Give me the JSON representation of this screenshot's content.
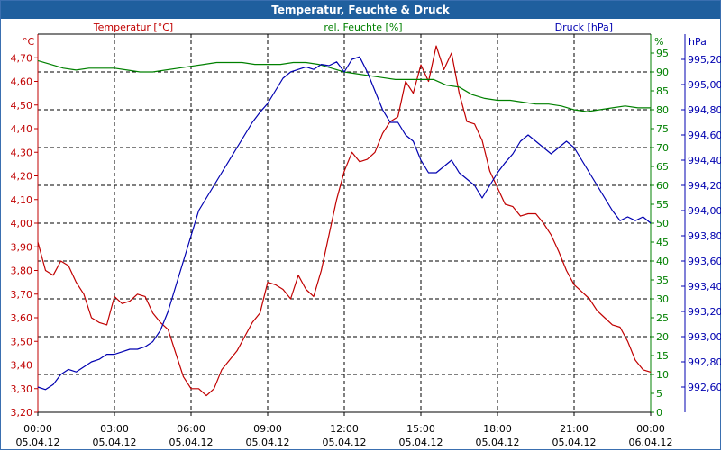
{
  "window": {
    "title": "Temperatur, Feuchte & Druck"
  },
  "colors": {
    "temperature": "#c00000",
    "humidity": "#008000",
    "pressure": "#0000b0",
    "grid": "#000000",
    "title_bar": "#1f5f9e"
  },
  "chart_data": {
    "type": "line",
    "title": "Temperatur, Feuchte & Druck",
    "x": {
      "unit_label": "time",
      "range_hours": [
        0,
        24
      ],
      "ticks": [
        {
          "hour": 0,
          "time": "00:00",
          "date": "05.04.12"
        },
        {
          "hour": 3,
          "time": "03:00",
          "date": "05.04.12"
        },
        {
          "hour": 6,
          "time": "06:00",
          "date": "05.04.12"
        },
        {
          "hour": 9,
          "time": "09:00",
          "date": "05.04.12"
        },
        {
          "hour": 12,
          "time": "12:00",
          "date": "05.04.12"
        },
        {
          "hour": 15,
          "time": "15:00",
          "date": "05.04.12"
        },
        {
          "hour": 18,
          "time": "18:00",
          "date": "05.04.12"
        },
        {
          "hour": 21,
          "time": "21:00",
          "date": "05.04.12"
        },
        {
          "hour": 24,
          "time": "00:00",
          "date": "06.04.12"
        }
      ]
    },
    "axes": {
      "temperature": {
        "label": "Temperatur [°C]",
        "unit": "°C",
        "range": [
          3.2,
          4.8
        ],
        "ticks": [
          "3,20",
          "3,30",
          "3,40",
          "3,50",
          "3,60",
          "3,70",
          "3,80",
          "3,90",
          "4,00",
          "4,10",
          "4,20",
          "4,30",
          "4,40",
          "4,50",
          "4,60",
          "4,70"
        ]
      },
      "humidity": {
        "label": "rel. Feuchte [%]",
        "unit": "%",
        "range": [
          0,
          100
        ],
        "ticks": [
          "0",
          "5",
          "10",
          "15",
          "20",
          "25",
          "30",
          "35",
          "40",
          "45",
          "50",
          "55",
          "60",
          "65",
          "70",
          "75",
          "80",
          "85",
          "90",
          "95"
        ]
      },
      "pressure": {
        "label": "Druck [hPa]",
        "unit": "hPa",
        "range": [
          992.4,
          995.4
        ],
        "ticks": [
          "992,60",
          "992,80",
          "993,00",
          "993,20",
          "993,40",
          "993,60",
          "993,80",
          "994,00",
          "994,20",
          "994,40",
          "994,60",
          "994,80",
          "995,00",
          "995,20"
        ]
      }
    },
    "series": [
      {
        "name": "Temperatur",
        "axis": "temperature",
        "color": "#c00000",
        "hours": [
          0,
          0.3,
          0.6,
          0.9,
          1.2,
          1.5,
          1.8,
          2.1,
          2.4,
          2.7,
          3.0,
          3.3,
          3.6,
          3.9,
          4.2,
          4.5,
          4.8,
          5.1,
          5.4,
          5.7,
          6.0,
          6.3,
          6.6,
          6.9,
          7.2,
          7.5,
          7.8,
          8.1,
          8.4,
          8.7,
          9.0,
          9.3,
          9.6,
          9.9,
          10.2,
          10.5,
          10.8,
          11.1,
          11.4,
          11.7,
          12.0,
          12.3,
          12.6,
          12.9,
          13.2,
          13.5,
          13.8,
          14.1,
          14.4,
          14.7,
          15.0,
          15.3,
          15.6,
          15.9,
          16.2,
          16.5,
          16.8,
          17.1,
          17.4,
          17.7,
          18.0,
          18.3,
          18.6,
          18.9,
          19.2,
          19.5,
          19.8,
          20.1,
          20.4,
          20.7,
          21.0,
          21.3,
          21.6,
          21.9,
          22.2,
          22.5,
          22.8,
          23.1,
          23.4,
          23.7,
          24.0
        ],
        "values": [
          3.92,
          3.8,
          3.78,
          3.84,
          3.82,
          3.75,
          3.7,
          3.6,
          3.58,
          3.57,
          3.69,
          3.66,
          3.67,
          3.7,
          3.69,
          3.62,
          3.58,
          3.55,
          3.45,
          3.35,
          3.3,
          3.3,
          3.27,
          3.3,
          3.38,
          3.42,
          3.46,
          3.52,
          3.58,
          3.62,
          3.75,
          3.74,
          3.72,
          3.68,
          3.78,
          3.72,
          3.69,
          3.8,
          3.95,
          4.1,
          4.22,
          4.3,
          4.26,
          4.27,
          4.3,
          4.38,
          4.43,
          4.45,
          4.6,
          4.55,
          4.67,
          4.6,
          4.75,
          4.65,
          4.72,
          4.55,
          4.43,
          4.42,
          4.35,
          4.22,
          4.15,
          4.08,
          4.07,
          4.03,
          4.04,
          4.04,
          4.0,
          3.95,
          3.88,
          3.8,
          3.74,
          3.71,
          3.68,
          3.63,
          3.6,
          3.57,
          3.56,
          3.5,
          3.42,
          3.38,
          3.37
        ]
      },
      {
        "name": "rel. Feuchte",
        "axis": "humidity",
        "color": "#008000",
        "hours": [
          0,
          0.5,
          1,
          1.5,
          2,
          2.5,
          3,
          3.5,
          4,
          4.5,
          5,
          5.5,
          6,
          6.5,
          7,
          7.5,
          8,
          8.5,
          9,
          9.5,
          10,
          10.5,
          11,
          11.5,
          12,
          12.5,
          13,
          13.5,
          14,
          14.5,
          15,
          15.5,
          16,
          16.5,
          17,
          17.5,
          18,
          18.5,
          19,
          19.5,
          20,
          20.5,
          21,
          21.5,
          22,
          22.5,
          23,
          23.5,
          24
        ],
        "values": [
          93,
          92,
          91,
          90.5,
          91,
          91,
          91,
          90.5,
          90,
          90,
          90.5,
          91,
          91.5,
          92,
          92.5,
          92.5,
          92.5,
          92,
          92,
          92,
          92.5,
          92.5,
          92,
          91,
          90,
          89.5,
          89,
          88.5,
          88,
          88,
          88,
          88,
          86.5,
          86,
          84,
          83,
          82.5,
          82.5,
          82,
          81.5,
          81.5,
          81,
          80,
          79.5,
          80,
          80.5,
          81,
          80.5,
          80.5
        ]
      },
      {
        "name": "Druck",
        "axis": "pressure",
        "color": "#0000b0",
        "hours": [
          0,
          0.3,
          0.6,
          0.9,
          1.2,
          1.5,
          1.8,
          2.1,
          2.4,
          2.7,
          3.0,
          3.3,
          3.6,
          3.9,
          4.2,
          4.5,
          4.8,
          5.1,
          5.4,
          5.7,
          6.0,
          6.3,
          6.6,
          6.9,
          7.2,
          7.5,
          7.8,
          8.1,
          8.4,
          8.7,
          9.0,
          9.3,
          9.6,
          9.9,
          10.2,
          10.5,
          10.8,
          11.1,
          11.4,
          11.7,
          12.0,
          12.3,
          12.6,
          12.9,
          13.2,
          13.5,
          13.8,
          14.1,
          14.4,
          14.7,
          15.0,
          15.3,
          15.6,
          15.9,
          16.2,
          16.5,
          16.8,
          17.1,
          17.4,
          17.7,
          18.0,
          18.3,
          18.6,
          18.9,
          19.2,
          19.5,
          19.8,
          20.1,
          20.4,
          20.7,
          21.0,
          21.3,
          21.6,
          21.9,
          22.2,
          22.5,
          22.8,
          23.1,
          23.4,
          23.7,
          24.0
        ],
        "values": [
          992.6,
          992.58,
          992.62,
          992.7,
          992.74,
          992.72,
          992.76,
          992.8,
          992.82,
          992.86,
          992.86,
          992.88,
          992.9,
          992.9,
          992.92,
          992.96,
          993.05,
          993.2,
          993.4,
          993.6,
          993.8,
          994.0,
          994.1,
          994.2,
          994.3,
          994.4,
          994.5,
          994.6,
          994.7,
          994.78,
          994.85,
          994.95,
          995.05,
          995.1,
          995.12,
          995.14,
          995.12,
          995.16,
          995.15,
          995.18,
          995.1,
          995.2,
          995.22,
          995.1,
          994.95,
          994.8,
          994.7,
          994.7,
          994.6,
          994.55,
          994.4,
          994.3,
          994.3,
          994.35,
          994.4,
          994.3,
          994.25,
          994.2,
          994.1,
          994.2,
          994.3,
          994.38,
          994.45,
          994.55,
          994.6,
          994.55,
          994.5,
          994.45,
          994.5,
          994.55,
          994.5,
          994.4,
          994.3,
          994.2,
          994.1,
          994.0,
          993.92,
          993.95,
          993.92,
          993.95,
          993.9
        ]
      }
    ]
  }
}
